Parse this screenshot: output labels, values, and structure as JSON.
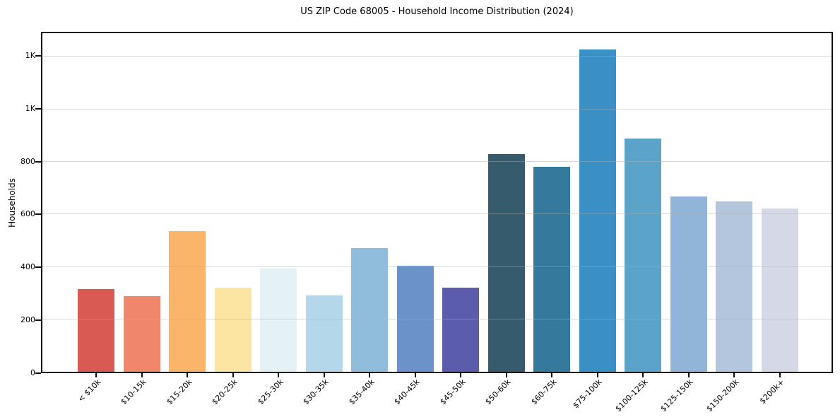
{
  "chart_data": {
    "type": "bar",
    "title": "US ZIP Code 68005 - Household Income Distribution (2024)",
    "xlabel": "",
    "ylabel": "Households",
    "categories": [
      "< $10k",
      "$10-15k",
      "$15-20k",
      "$20-25k",
      "$25-30k",
      "$30-35k",
      "$35-40k",
      "$40-45k",
      "$45-50k",
      "$50-60k",
      "$60-75k",
      "$75-100k",
      "$100-125k",
      "$125-150k",
      "$150-200k",
      "$200k+"
    ],
    "values": [
      314,
      289,
      535,
      320,
      392,
      292,
      472,
      405,
      320,
      830,
      782,
      1227,
      888,
      668,
      650,
      621
    ],
    "bar_colors": [
      "#d95a52",
      "#f0876a",
      "#fab56b",
      "#fce4a2",
      "#e4f1f5",
      "#b4d8e9",
      "#90bddc",
      "#6b93ca",
      "#5c5cad",
      "#355b6d",
      "#35799d",
      "#3a8fc4",
      "#5ba3c9",
      "#90b5d8",
      "#b4c6de",
      "#d5d8e6"
    ],
    "ylim": [
      0,
      1290
    ],
    "yticks": {
      "values": [
        0,
        200,
        400,
        600,
        800,
        1000,
        1200
      ],
      "labels": [
        "0",
        "200",
        "400",
        "600",
        "800",
        "1K",
        "1K"
      ]
    },
    "grid": "horizontal-only, light gray, drawn over bars",
    "legend": "none",
    "background_color": "#ffffff",
    "spine_color": "#0d0d0d"
  }
}
